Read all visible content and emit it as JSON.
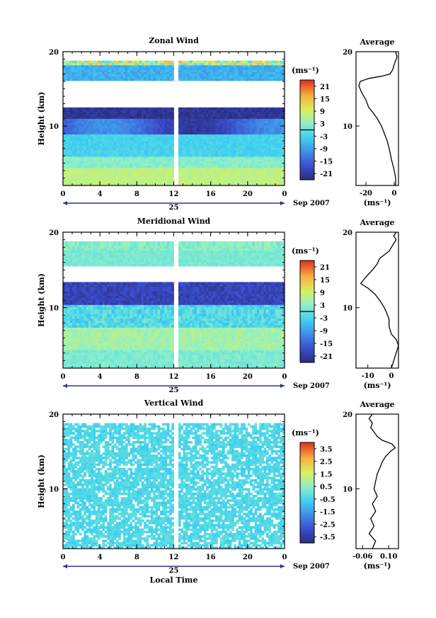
{
  "figure": {
    "date_label": "Sep 2007",
    "day_label": "25",
    "xlabel": "Local Time",
    "ylabel": "Height (km)",
    "avg_title": "Average",
    "unit": "(ms⁻¹)"
  },
  "chart_data": [
    {
      "type": "heatmap",
      "title": "Zonal Wind",
      "x_ticks": [
        "0",
        "4",
        "8",
        "12",
        "16",
        "20",
        "0"
      ],
      "y_ticks": [
        "10",
        "20"
      ],
      "xlim": [
        0,
        24
      ],
      "ylim": [
        2,
        20
      ],
      "colorbar_ticks": [
        "21",
        "15",
        "9",
        "3",
        "-3",
        "-9",
        "-15",
        "-21"
      ],
      "colorbar_range": [
        -24,
        24
      ],
      "avg_profile": {
        "xlim": [
          -27,
          3
        ],
        "x_ticks": [
          "-20",
          "0"
        ],
        "points": [
          [
            1,
            2
          ],
          [
            1,
            3
          ],
          [
            0,
            4
          ],
          [
            -1,
            4.8
          ],
          [
            -2,
            5.5
          ],
          [
            -3,
            6.5
          ],
          [
            -4,
            7.3
          ],
          [
            -5,
            8
          ],
          [
            -7,
            9
          ],
          [
            -9,
            10
          ],
          [
            -12,
            11
          ],
          [
            -15,
            11.8
          ],
          [
            -18,
            12.5
          ],
          [
            -20,
            13.5
          ],
          [
            -23,
            14.5
          ],
          [
            -25,
            15.4
          ],
          [
            -24,
            16
          ],
          [
            -18,
            16.4
          ],
          [
            -9,
            16.7
          ],
          [
            -3,
            17
          ],
          [
            -1,
            17.6
          ],
          [
            0,
            18.3
          ],
          [
            1,
            18.8
          ],
          [
            2,
            19.3
          ],
          [
            1,
            20
          ]
        ]
      }
    },
    {
      "type": "heatmap",
      "title": "Meridional Wind",
      "x_ticks": [
        "0",
        "4",
        "8",
        "12",
        "16",
        "20",
        "0"
      ],
      "y_ticks": [
        "10",
        "20"
      ],
      "xlim": [
        0,
        24
      ],
      "ylim": [
        2,
        20
      ],
      "colorbar_ticks": [
        "21",
        "15",
        "9",
        "3",
        "-3",
        "-9",
        "-15",
        "-21"
      ],
      "colorbar_range": [
        -24,
        24
      ],
      "avg_profile": {
        "xlim": [
          -15,
          3
        ],
        "x_ticks": [
          "-10",
          "0"
        ],
        "points": [
          [
            0,
            2
          ],
          [
            1,
            3
          ],
          [
            2,
            4
          ],
          [
            3,
            5
          ],
          [
            2,
            5.8
          ],
          [
            0,
            6.5
          ],
          [
            -1,
            7.5
          ],
          [
            -1,
            8.5
          ],
          [
            -2,
            9.3
          ],
          [
            -3,
            10
          ],
          [
            -5,
            11
          ],
          [
            -7,
            11.8
          ],
          [
            -10,
            12.6
          ],
          [
            -13,
            13.2
          ],
          [
            -11,
            14
          ],
          [
            -8,
            15
          ],
          [
            -6,
            15.8
          ],
          [
            -5,
            16.5
          ],
          [
            -3,
            17
          ],
          [
            -1,
            17.5
          ],
          [
            0,
            18
          ],
          [
            1,
            18.5
          ],
          [
            2,
            19
          ],
          [
            1,
            19.5
          ],
          [
            2,
            20
          ]
        ]
      }
    },
    {
      "type": "heatmap",
      "title": "Vertical Wind",
      "x_ticks": [
        "0",
        "4",
        "8",
        "12",
        "16",
        "20",
        "0"
      ],
      "y_ticks": [
        "10",
        "20"
      ],
      "xlim": [
        0,
        24
      ],
      "ylim": [
        2,
        20
      ],
      "colorbar_ticks": [
        "3.5",
        "2.5",
        "1.5",
        "0.5",
        "-0.5",
        "-1.5",
        "-2.5",
        "-3.5"
      ],
      "colorbar_range": [
        -4,
        4
      ],
      "avg_profile": {
        "xlim": [
          -0.1,
          0.16
        ],
        "x_ticks": [
          "-0.06",
          "0.10"
        ],
        "points": [
          [
            0.0,
            2
          ],
          [
            0.02,
            3
          ],
          [
            -0.02,
            4
          ],
          [
            0.01,
            5
          ],
          [
            -0.01,
            6
          ],
          [
            0.02,
            7
          ],
          [
            0.0,
            8
          ],
          [
            0.03,
            9
          ],
          [
            0.01,
            10
          ],
          [
            0.02,
            11
          ],
          [
            0.03,
            12
          ],
          [
            0.05,
            13
          ],
          [
            0.06,
            13.6
          ],
          [
            0.08,
            14.3
          ],
          [
            0.11,
            15
          ],
          [
            0.14,
            15.5
          ],
          [
            0.12,
            16
          ],
          [
            0.06,
            16.5
          ],
          [
            0.03,
            17
          ],
          [
            0.01,
            17.6
          ],
          [
            -0.01,
            18.2
          ],
          [
            0.0,
            18.8
          ],
          [
            -0.02,
            19.4
          ],
          [
            0.0,
            20
          ]
        ]
      }
    }
  ]
}
